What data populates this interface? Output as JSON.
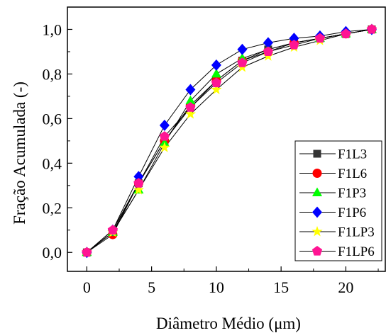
{
  "chart_data": {
    "type": "line",
    "title": "",
    "xlabel": "Diâmetro Médio (μm)",
    "ylabel": "Fração Acumulada (-)",
    "xlim": [
      -1.5,
      23.1
    ],
    "ylim": [
      -0.085,
      1.1
    ],
    "x_ticks": [
      0,
      5,
      10,
      15,
      20
    ],
    "x_tick_labels": [
      "0",
      "5",
      "10",
      "15",
      "20"
    ],
    "y_ticks": [
      0.0,
      0.2,
      0.4,
      0.6,
      0.8,
      1.0
    ],
    "y_tick_labels": [
      "0,0",
      "0,2",
      "0,4",
      "0,6",
      "0,8",
      "1,0"
    ],
    "grid": false,
    "legend_position": "bottom-right",
    "x": [
      0,
      2,
      4,
      6,
      8,
      10,
      12,
      14,
      16,
      18,
      20,
      22
    ],
    "series": [
      {
        "name": "F1L3",
        "color": "#333333",
        "marker": "square",
        "values": [
          0.0,
          0.09,
          0.31,
          0.5,
          0.65,
          0.77,
          0.86,
          0.91,
          0.94,
          0.96,
          0.98,
          1.0
        ]
      },
      {
        "name": "F1L6",
        "color": "#ff0000",
        "marker": "circle",
        "values": [
          0.0,
          0.08,
          0.31,
          0.5,
          0.66,
          0.77,
          0.86,
          0.9,
          0.94,
          0.96,
          0.98,
          1.0
        ]
      },
      {
        "name": "F1P3",
        "color": "#00ff00",
        "marker": "triangle",
        "values": [
          0.0,
          0.09,
          0.28,
          0.49,
          0.68,
          0.8,
          0.87,
          0.91,
          0.94,
          0.96,
          0.98,
          1.0
        ]
      },
      {
        "name": "F1P6",
        "color": "#0000ff",
        "marker": "diamond",
        "values": [
          0.0,
          0.1,
          0.34,
          0.57,
          0.73,
          0.84,
          0.91,
          0.94,
          0.96,
          0.97,
          0.99,
          1.0
        ]
      },
      {
        "name": "F1LP3",
        "color": "#ffff00",
        "marker": "star",
        "values": [
          0.0,
          0.09,
          0.28,
          0.47,
          0.62,
          0.73,
          0.83,
          0.88,
          0.92,
          0.95,
          0.98,
          1.0
        ]
      },
      {
        "name": "F1LP6",
        "color": "#ff1493",
        "marker": "pentagon",
        "values": [
          0.0,
          0.1,
          0.31,
          0.52,
          0.65,
          0.76,
          0.85,
          0.9,
          0.93,
          0.96,
          0.98,
          1.0
        ]
      }
    ]
  }
}
